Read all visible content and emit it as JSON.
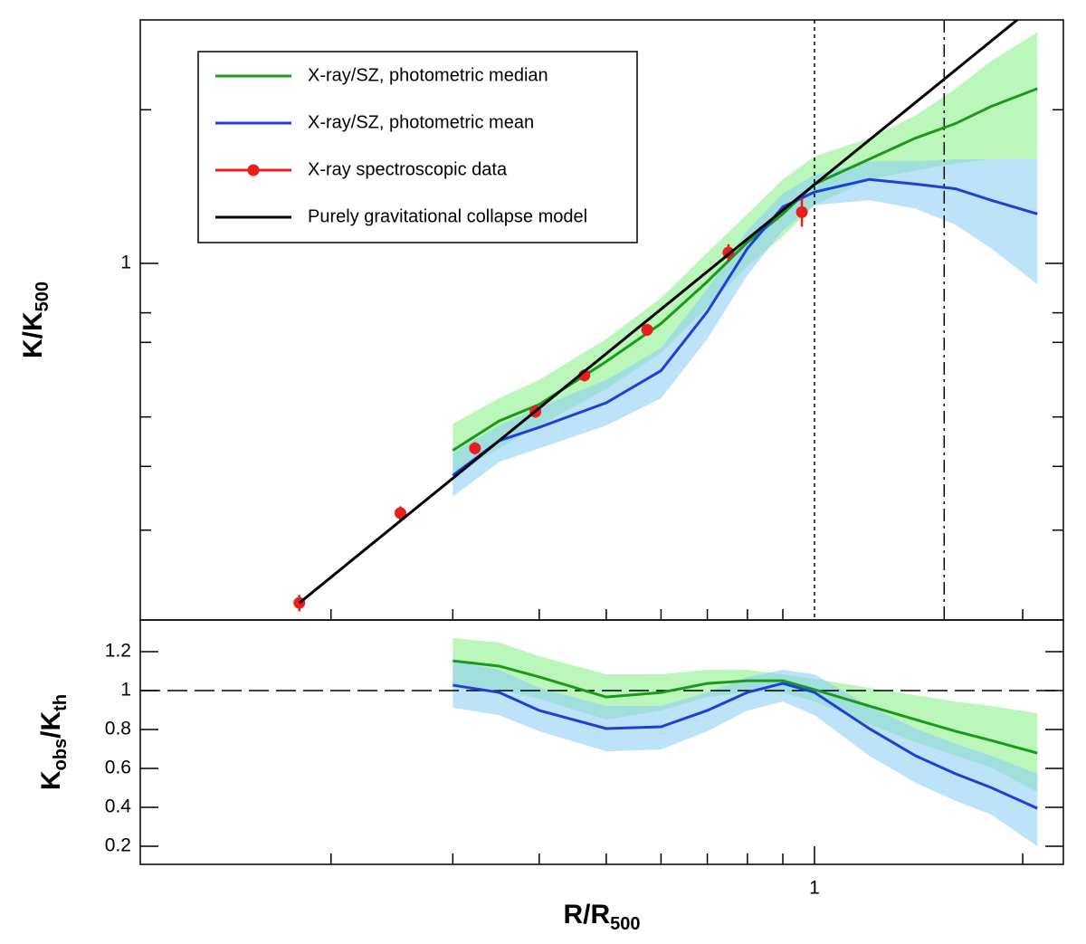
{
  "chart_data": [
    {
      "type": "line",
      "log_x": true,
      "log_y": true,
      "xlim": [
        0.106,
        2.29
      ],
      "ylim": [
        0.2,
        3.0
      ],
      "xminor_ticks": [
        0.2,
        0.3,
        0.4,
        0.5,
        0.6,
        0.7,
        0.8,
        0.9,
        2
      ],
      "yticks": [
        1
      ],
      "yminor_ticks": [
        0.3,
        0.4,
        0.5,
        0.7,
        0.8,
        2
      ],
      "ylabel": [
        "K/K",
        "500"
      ],
      "legend": "upper left",
      "vlines": [
        {
          "value": 1,
          "style": "dotted"
        },
        {
          "value": 1.54,
          "style": "dashdot"
        }
      ],
      "x": [
        0.3,
        0.35,
        0.4,
        0.5,
        0.6,
        0.7,
        0.8,
        0.9,
        1,
        1.2,
        1.4,
        1.6,
        1.8,
        2.1
      ],
      "series": [
        {
          "name": "X-ray/SZ, photometric median",
          "color": "#1a9a1a",
          "band_color": "#8ef08e",
          "values": [
            0.43,
            0.491,
            0.529,
            0.642,
            0.762,
            0.921,
            1.1,
            1.25,
            1.43,
            1.6,
            1.76,
            1.88,
            2.03,
            2.2
          ],
          "upper": [
            0.485,
            0.544,
            0.591,
            0.711,
            0.855,
            1.05,
            1.25,
            1.46,
            1.62,
            1.76,
            1.95,
            2.2,
            2.49,
            2.84
          ],
          "lower": [
            0.384,
            0.434,
            0.481,
            0.567,
            0.668,
            0.821,
            0.988,
            1.13,
            1.3,
            1.46,
            1.52,
            1.57,
            1.6,
            1.6
          ]
        },
        {
          "name": "X-ray/SZ, photometric mean",
          "color": "#1f3fd8",
          "band_color": "#8fd0f2",
          "values": [
            0.384,
            0.449,
            0.477,
            0.533,
            0.616,
            0.804,
            1.07,
            1.29,
            1.38,
            1.46,
            1.43,
            1.4,
            1.33,
            1.25
          ],
          "upper": [
            0.425,
            0.481,
            0.522,
            0.591,
            0.682,
            0.891,
            1.16,
            1.37,
            1.49,
            1.585,
            1.585,
            1.6,
            1.6,
            1.6
          ],
          "lower": [
            0.349,
            0.408,
            0.434,
            0.481,
            0.544,
            0.711,
            0.948,
            1.16,
            1.3,
            1.33,
            1.28,
            1.19,
            1.07,
            0.91
          ]
        },
        {
          "name": "X-ray spectroscopic data",
          "color": "#e8201c",
          "marker": true,
          "x": [
            0.18,
            0.252,
            0.323,
            0.395,
            0.465,
            0.573,
            0.751,
            0.959
          ],
          "values": [
            0.216,
            0.324,
            0.434,
            0.512,
            0.603,
            0.741,
            1.05,
            1.26
          ],
          "errors": [
            0.008,
            0.01,
            0.012,
            0.014,
            0.016,
            0.02,
            0.04,
            0.08
          ]
        },
        {
          "name": "Purely gravitational collapse model",
          "color": "#000000",
          "x": [
            0.18,
            2.2
          ],
          "values": [
            0.216,
            3.4
          ]
        }
      ]
    },
    {
      "type": "line",
      "log_x": true,
      "log_y": false,
      "xlim": [
        0.106,
        2.29
      ],
      "ylim": [
        0.107,
        1.363
      ],
      "xticks": [
        1
      ],
      "xminor_ticks": [
        0.2,
        0.3,
        0.4,
        0.5,
        0.6,
        0.7,
        0.8,
        0.9,
        2
      ],
      "yticks": [
        0.2,
        0.4,
        0.6,
        0.8,
        1,
        1.2
      ],
      "xlabel": [
        "R/R",
        "500"
      ],
      "ylabel": [
        "K",
        "obs",
        "/K",
        "th"
      ],
      "hlines": [
        1
      ],
      "x": [
        0.3,
        0.35,
        0.4,
        0.5,
        0.6,
        0.7,
        0.8,
        0.9,
        1,
        1.2,
        1.4,
        1.6,
        1.8,
        2.1
      ],
      "series": [
        {
          "color": "#1a9a1a",
          "band_color": "#8ef08e",
          "values": [
            1.153,
            1.126,
            1.07,
            0.967,
            0.99,
            1.037,
            1.051,
            1.051,
            1.005,
            0.921,
            0.851,
            0.791,
            0.744,
            0.679
          ],
          "upper": [
            1.27,
            1.247,
            1.177,
            1.084,
            1.084,
            1.107,
            1.107,
            1.084,
            1.06,
            1.014,
            0.977,
            0.944,
            0.921,
            0.884
          ],
          "lower": [
            1.037,
            1.005,
            0.958,
            0.851,
            0.898,
            0.967,
            0.991,
            0.991,
            0.944,
            0.828,
            0.735,
            0.665,
            0.605,
            0.479
          ]
        },
        {
          "color": "#1f3fd8",
          "band_color": "#8fd0f2",
          "values": [
            1.028,
            0.991,
            0.898,
            0.805,
            0.814,
            0.898,
            0.991,
            1.037,
            0.991,
            0.805,
            0.665,
            0.572,
            0.502,
            0.395
          ],
          "upper": [
            1.153,
            1.107,
            1.014,
            0.921,
            0.921,
            0.991,
            1.07,
            1.107,
            1.084,
            0.921,
            0.805,
            0.726,
            0.665,
            0.572
          ],
          "lower": [
            0.912,
            0.874,
            0.791,
            0.688,
            0.698,
            0.791,
            0.898,
            0.944,
            0.874,
            0.665,
            0.526,
            0.433,
            0.363,
            0.2
          ]
        }
      ]
    }
  ]
}
